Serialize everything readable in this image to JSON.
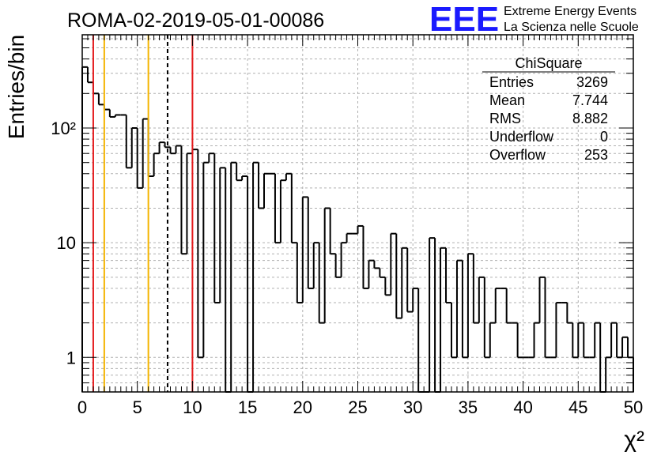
{
  "title": "ROMA-02-2019-05-01-00086",
  "logo": {
    "text": "EEE",
    "line1": "Extreme Energy Events",
    "line2": "La Scienza nelle Scuole",
    "color": "#1a1aff"
  },
  "stats": {
    "name": "ChiSquare",
    "rows": [
      {
        "label": "Entries",
        "value": "3269"
      },
      {
        "label": "Mean",
        "value": "7.744"
      },
      {
        "label": "RMS",
        "value": "8.882"
      },
      {
        "label": "Underflow",
        "value": "0"
      },
      {
        "label": "Overflow",
        "value": "253"
      }
    ]
  },
  "chart_data": {
    "type": "histogram",
    "xlabel": "χ²",
    "ylabel": "Entries/bin",
    "xlim": [
      0,
      50
    ],
    "ylim": [
      0.5,
      650
    ],
    "yscale": "log",
    "grid": true,
    "bin_width": 0.5,
    "x_ticks": [
      "0",
      "5",
      "10",
      "15",
      "20",
      "25",
      "30",
      "35",
      "40",
      "45",
      "50"
    ],
    "y_ticks": [
      {
        "value": 1,
        "label": "1"
      },
      {
        "value": 10,
        "label": "10"
      },
      {
        "value": 100,
        "label": "10²"
      }
    ],
    "values": [
      340,
      250,
      200,
      160,
      145,
      125,
      130,
      130,
      45,
      100,
      30,
      120,
      38,
      60,
      75,
      68,
      60,
      70,
      8,
      60,
      65,
      1,
      50,
      60,
      3,
      45,
      0,
      50,
      35,
      38,
      0,
      50,
      20,
      40,
      40,
      10,
      35,
      40,
      10,
      3,
      25,
      4,
      10,
      2,
      20,
      8,
      5,
      10,
      12,
      12,
      14,
      4,
      7,
      6,
      5,
      3.5,
      12,
      2.2,
      9,
      2.5,
      4,
      0,
      0,
      11,
      0,
      9,
      3,
      1,
      7,
      1,
      8,
      2,
      5,
      1,
      2,
      4,
      4,
      2,
      2,
      1,
      1,
      1,
      2,
      5,
      1,
      1,
      3,
      3,
      2,
      1,
      2,
      1,
      1,
      2,
      0,
      1,
      2,
      1,
      1.5,
      1
    ],
    "vertical_lines": [
      {
        "x": 1,
        "color": "#e41a1c",
        "style": "solid"
      },
      {
        "x": 2,
        "color": "#f4b400",
        "style": "solid"
      },
      {
        "x": 6,
        "color": "#f4b400",
        "style": "solid"
      },
      {
        "x": 7.744,
        "color": "#000000",
        "style": "dashed"
      },
      {
        "x": 10,
        "color": "#e41a1c",
        "style": "solid"
      }
    ]
  }
}
